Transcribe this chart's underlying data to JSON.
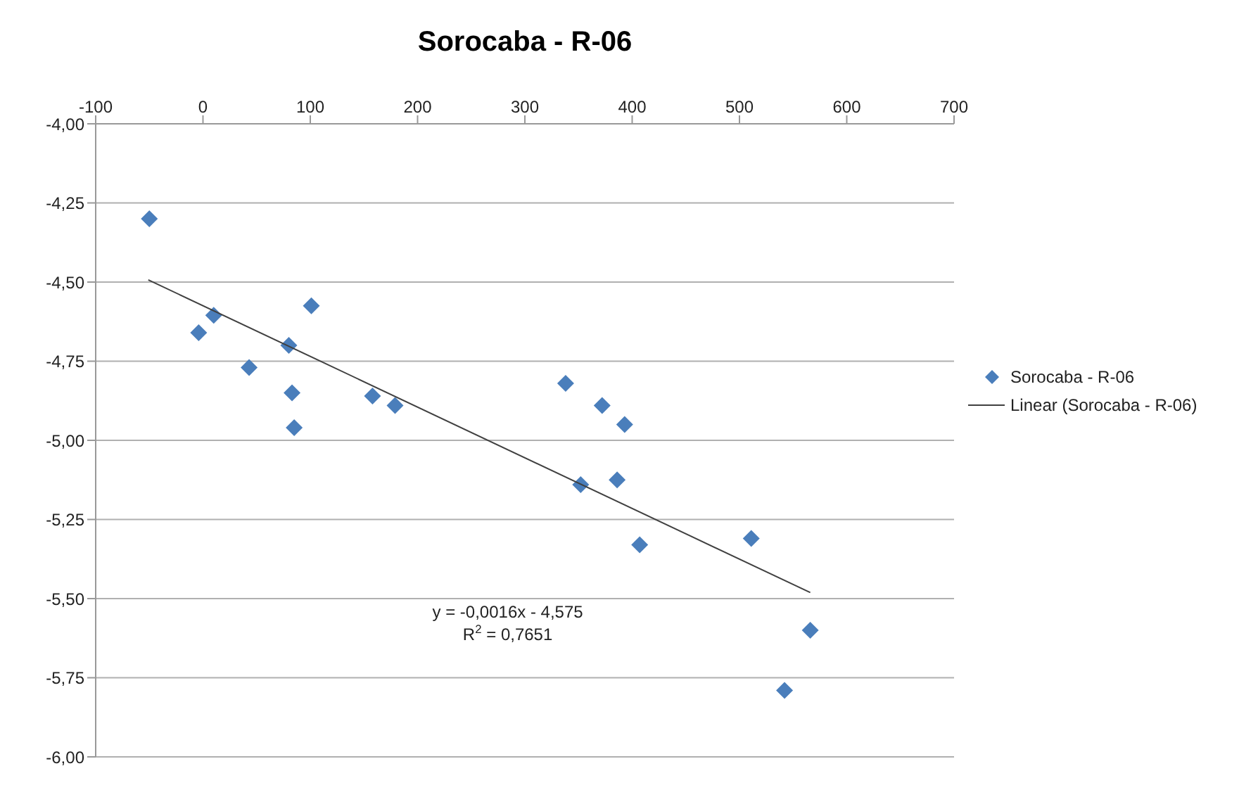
{
  "chart_data": {
    "type": "scatter",
    "title": "Sorocaba - R-06",
    "x": [
      -50,
      -4,
      10,
      43,
      80,
      101,
      83,
      85,
      158,
      179,
      338,
      372,
      393,
      352,
      386,
      407,
      511,
      566,
      542
    ],
    "series": [
      {
        "name": "Sorocaba - R-06",
        "color": "#4a7ebb",
        "marker": "diamond",
        "values": [
          -4.3,
          -4.66,
          -4.605,
          -4.77,
          -4.7,
          -4.575,
          -4.85,
          -4.96,
          -4.86,
          -4.89,
          -4.82,
          -4.89,
          -4.95,
          -5.14,
          -5.125,
          -5.33,
          -5.31,
          -5.6,
          -5.79
        ]
      },
      {
        "name": "Linear (Sorocaba - R-06)",
        "type": "line",
        "marker": "none",
        "color": "#404040",
        "x": [
          -51,
          566
        ],
        "values": [
          -4.493,
          -5.481
        ]
      }
    ],
    "xlim": [
      -100,
      700
    ],
    "xticks": [
      -100,
      0,
      100,
      200,
      300,
      400,
      500,
      600,
      700
    ],
    "ylim": [
      -6,
      -4
    ],
    "yticks": [
      {
        "value": -4,
        "label": "-4,00"
      },
      {
        "value": -4.25,
        "label": "-4,25"
      },
      {
        "value": -4.5,
        "label": "-4,50"
      },
      {
        "value": -4.75,
        "label": "-4,75"
      },
      {
        "value": -5,
        "label": "-5,00"
      },
      {
        "value": -5.25,
        "label": "-5,25"
      },
      {
        "value": -5.5,
        "label": "-5,50"
      },
      {
        "value": -5.75,
        "label": "-5,75"
      },
      {
        "value": -6,
        "label": "-6,00"
      }
    ],
    "grid": "y",
    "legend": "right",
    "annotations": [
      "y = -0,0016x - 4,575",
      "R$^{2}$ = 0,7651"
    ]
  }
}
